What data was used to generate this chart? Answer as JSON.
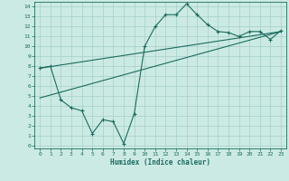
{
  "xlabel": "Humidex (Indice chaleur)",
  "background_color": "#cceae4",
  "line_color": "#1a6b5e",
  "grid_color": "#aad4cc",
  "x_ticks": [
    0,
    1,
    2,
    3,
    4,
    5,
    6,
    7,
    8,
    9,
    10,
    11,
    12,
    13,
    14,
    15,
    16,
    17,
    18,
    19,
    20,
    21,
    22,
    23
  ],
  "y_ticks": [
    0,
    1,
    2,
    3,
    4,
    5,
    6,
    7,
    8,
    9,
    10,
    11,
    12,
    13,
    14
  ],
  "zigzag_x": [
    0,
    1,
    2,
    3,
    4,
    5,
    6,
    7,
    8,
    9,
    10,
    11,
    12,
    13,
    14,
    15,
    16,
    17,
    18,
    19,
    20,
    21,
    22,
    23
  ],
  "zigzag_y": [
    7.8,
    8.0,
    4.6,
    3.8,
    3.5,
    1.2,
    2.6,
    2.4,
    0.2,
    3.2,
    10.0,
    12.0,
    13.2,
    13.2,
    14.3,
    13.2,
    12.2,
    11.5,
    11.4,
    11.0,
    11.5,
    11.5,
    10.7,
    11.6
  ],
  "line1_x": [
    0,
    23
  ],
  "line1_y": [
    7.8,
    11.5
  ],
  "line2_x": [
    0,
    23
  ],
  "line2_y": [
    4.8,
    11.5
  ],
  "ylim": [
    -0.3,
    14.5
  ],
  "xlim": [
    -0.5,
    23.5
  ]
}
